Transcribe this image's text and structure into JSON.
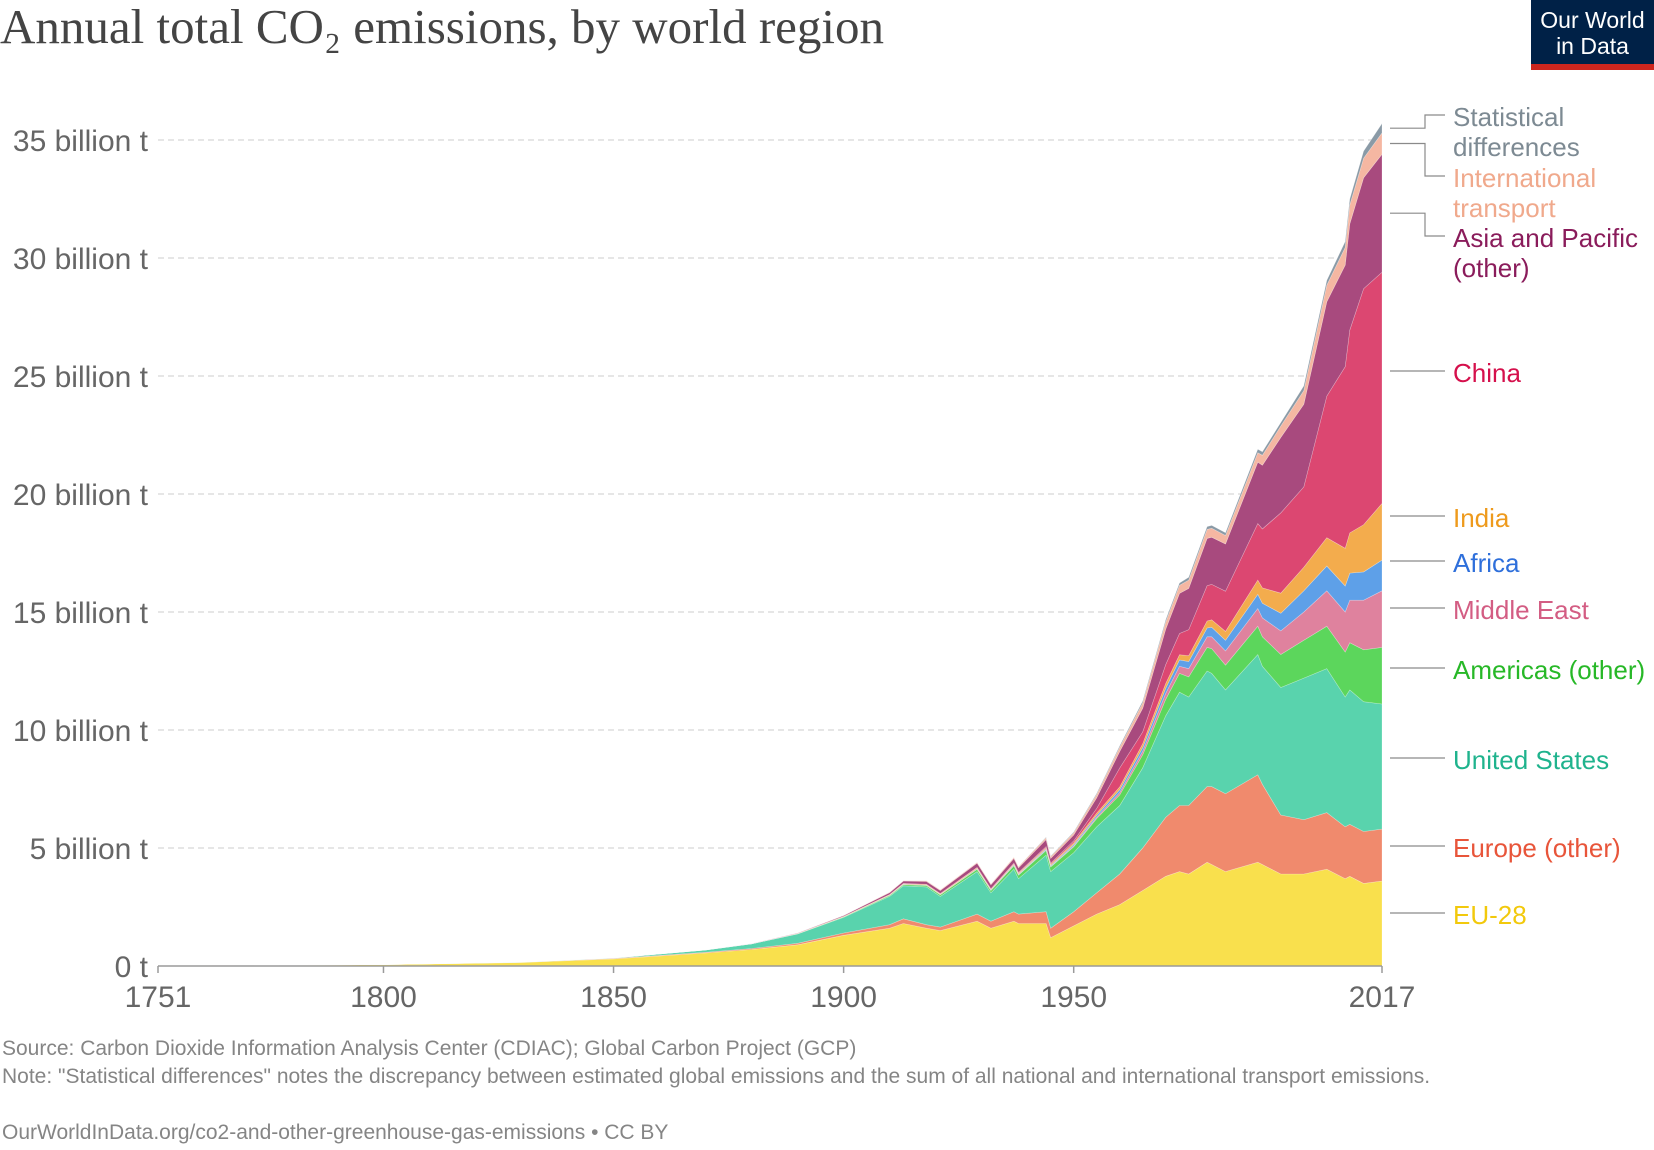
{
  "title": "Annual total CO₂ emissions, by world region",
  "logo": {
    "line1": "Our World",
    "line2": "in Data"
  },
  "footer": {
    "source": "Source: Carbon Dioxide Information Analysis Center (CDIAC); Global Carbon Project (GCP)",
    "note": "Note: \"Statistical differences\" notes the discrepancy between estimated global emissions and the sum of all national and international transport emissions.",
    "url": "OurWorldInData.org/co2-and-other-greenhouse-gas-emissions • CC BY"
  },
  "chart_data": {
    "type": "area",
    "stacked": true,
    "title": "Annual total CO₂ emissions, by world region",
    "unit": "t",
    "x": [
      1751,
      1800,
      1830,
      1850,
      1870,
      1880,
      1890,
      1900,
      1910,
      1913,
      1918,
      1921,
      1929,
      1932,
      1937,
      1938,
      1944,
      1945,
      1950,
      1955,
      1960,
      1965,
      1970,
      1973,
      1975,
      1979,
      1980,
      1983,
      1990,
      1991,
      1995,
      2000,
      2005,
      2009,
      2010,
      2013,
      2017
    ],
    "series": [
      {
        "name": "EU-28",
        "color": "#f9e04d",
        "values": [
          0.01,
          0.06,
          0.15,
          0.3,
          0.55,
          0.7,
          0.9,
          1.3,
          1.6,
          1.8,
          1.6,
          1.5,
          1.9,
          1.6,
          1.9,
          1.8,
          1.8,
          1.2,
          1.7,
          2.2,
          2.6,
          3.2,
          3.8,
          4.0,
          3.9,
          4.4,
          4.3,
          4.0,
          4.4,
          4.3,
          3.9,
          3.9,
          4.1,
          3.7,
          3.8,
          3.5,
          3.6
        ]
      },
      {
        "name": "Europe (other)",
        "color": "#f08a6d",
        "values": [
          0.0,
          0.0,
          0.0,
          0.02,
          0.03,
          0.04,
          0.06,
          0.1,
          0.15,
          0.2,
          0.15,
          0.15,
          0.3,
          0.3,
          0.4,
          0.4,
          0.5,
          0.4,
          0.6,
          0.9,
          1.3,
          1.8,
          2.5,
          2.8,
          2.9,
          3.2,
          3.3,
          3.3,
          3.7,
          3.4,
          2.5,
          2.3,
          2.4,
          2.2,
          2.2,
          2.2,
          2.2
        ]
      },
      {
        "name": "United States",
        "color": "#59d3ad",
        "values": [
          0.0,
          0.0,
          0.01,
          0.02,
          0.1,
          0.2,
          0.4,
          0.66,
          1.2,
          1.4,
          1.6,
          1.3,
          1.8,
          1.2,
          1.8,
          1.5,
          2.4,
          2.4,
          2.5,
          2.8,
          2.9,
          3.4,
          4.3,
          4.8,
          4.6,
          4.9,
          4.8,
          4.4,
          5.1,
          5.0,
          5.4,
          6.0,
          6.1,
          5.5,
          5.7,
          5.5,
          5.3
        ]
      },
      {
        "name": "Americas (other)",
        "color": "#5cd65c",
        "values": [
          0.0,
          0.0,
          0.0,
          0.0,
          0.0,
          0.0,
          0.01,
          0.02,
          0.04,
          0.05,
          0.06,
          0.07,
          0.1,
          0.1,
          0.15,
          0.15,
          0.2,
          0.2,
          0.25,
          0.35,
          0.45,
          0.55,
          0.7,
          0.8,
          0.85,
          1.0,
          1.05,
          1.05,
          1.2,
          1.25,
          1.4,
          1.6,
          1.8,
          1.9,
          2.0,
          2.2,
          2.4
        ]
      },
      {
        "name": "Middle East",
        "color": "#df829e",
        "values": [
          0.0,
          0.0,
          0.0,
          0.0,
          0.0,
          0.0,
          0.0,
          0.0,
          0.0,
          0.0,
          0.0,
          0.0,
          0.0,
          0.0,
          0.01,
          0.01,
          0.02,
          0.02,
          0.04,
          0.06,
          0.1,
          0.15,
          0.25,
          0.3,
          0.35,
          0.45,
          0.5,
          0.6,
          0.75,
          0.8,
          1.0,
          1.2,
          1.5,
          1.7,
          1.8,
          2.1,
          2.4
        ]
      },
      {
        "name": "Africa",
        "color": "#5ea0e8",
        "values": [
          0.0,
          0.0,
          0.0,
          0.0,
          0.0,
          0.0,
          0.0,
          0.0,
          0.01,
          0.01,
          0.01,
          0.01,
          0.02,
          0.02,
          0.03,
          0.03,
          0.04,
          0.04,
          0.06,
          0.08,
          0.12,
          0.16,
          0.22,
          0.27,
          0.3,
          0.37,
          0.4,
          0.45,
          0.6,
          0.62,
          0.75,
          0.9,
          1.05,
          1.1,
          1.15,
          1.2,
          1.3
        ]
      },
      {
        "name": "India",
        "color": "#f3ac4d",
        "values": [
          0.0,
          0.0,
          0.0,
          0.0,
          0.0,
          0.0,
          0.01,
          0.02,
          0.02,
          0.03,
          0.03,
          0.03,
          0.04,
          0.03,
          0.04,
          0.04,
          0.05,
          0.05,
          0.07,
          0.09,
          0.12,
          0.16,
          0.2,
          0.22,
          0.25,
          0.3,
          0.32,
          0.38,
          0.6,
          0.65,
          0.85,
          1.0,
          1.2,
          1.6,
          1.7,
          2.0,
          2.4
        ]
      },
      {
        "name": "China",
        "color": "#dc4771",
        "values": [
          0.0,
          0.0,
          0.0,
          0.0,
          0.0,
          0.0,
          0.0,
          0.0,
          0.01,
          0.01,
          0.01,
          0.01,
          0.02,
          0.02,
          0.03,
          0.03,
          0.05,
          0.05,
          0.08,
          0.2,
          0.8,
          0.5,
          0.8,
          0.9,
          1.1,
          1.5,
          1.5,
          1.7,
          2.4,
          2.5,
          3.4,
          3.4,
          6.0,
          7.7,
          8.6,
          10.0,
          9.8
        ]
      },
      {
        "name": "Asia and Pacific (other)",
        "color": "#a84a7e",
        "values": [
          0.0,
          0.0,
          0.0,
          0.0,
          0.0,
          0.01,
          0.02,
          0.04,
          0.08,
          0.1,
          0.12,
          0.13,
          0.18,
          0.17,
          0.2,
          0.2,
          0.3,
          0.2,
          0.25,
          0.45,
          0.7,
          1.0,
          1.5,
          1.7,
          1.75,
          2.0,
          2.0,
          2.0,
          2.6,
          2.7,
          3.2,
          3.5,
          4.0,
          4.3,
          4.5,
          4.7,
          5.0
        ]
      },
      {
        "name": "International transport",
        "color": "#f5b7a2",
        "values": [
          0.0,
          0.0,
          0.0,
          0.0,
          0.0,
          0.0,
          0.0,
          0.0,
          0.02,
          0.02,
          0.03,
          0.03,
          0.04,
          0.04,
          0.05,
          0.05,
          0.08,
          0.08,
          0.1,
          0.14,
          0.18,
          0.23,
          0.3,
          0.34,
          0.35,
          0.38,
          0.38,
          0.36,
          0.4,
          0.42,
          0.48,
          0.58,
          0.7,
          0.75,
          0.8,
          0.83,
          0.9
        ]
      },
      {
        "name": "Statistical differences",
        "color": "#8a9aa6",
        "values": [
          0.0,
          0.0,
          0.0,
          0.0,
          0.0,
          0.0,
          0.0,
          0.0,
          0.0,
          0.0,
          0.0,
          0.0,
          0.0,
          0.0,
          0.0,
          0.0,
          0.02,
          0.02,
          0.03,
          0.05,
          0.06,
          0.08,
          0.1,
          0.1,
          0.12,
          0.12,
          0.12,
          0.12,
          0.15,
          0.15,
          0.15,
          0.2,
          0.2,
          0.25,
          0.25,
          0.3,
          0.4
        ]
      }
    ],
    "labels": [
      {
        "text": [
          "Statistical",
          "differences"
        ],
        "color": "#7d8a93"
      },
      {
        "text": [
          "International",
          "transport"
        ],
        "color": "#f0a98c"
      },
      {
        "text": [
          "Asia and Pacific",
          "(other)"
        ],
        "color": "#8a1c5b"
      },
      {
        "text": [
          "China"
        ],
        "color": "#d5104c"
      },
      {
        "text": [
          "India"
        ],
        "color": "#ee9a1c"
      },
      {
        "text": [
          "Africa"
        ],
        "color": "#2e6fdb"
      },
      {
        "text": [
          "Middle East"
        ],
        "color": "#d35d83"
      },
      {
        "text": [
          "Americas (other)"
        ],
        "color": "#27b827"
      },
      {
        "text": [
          "United States"
        ],
        "color": "#1fb38d"
      },
      {
        "text": [
          "Europe (other)"
        ],
        "color": "#e8553a"
      },
      {
        "text": [
          "EU-28"
        ],
        "color": "#f2c90c"
      }
    ],
    "y_ticks": [
      {
        "value": 0,
        "label": "0 t"
      },
      {
        "value": 5,
        "label": "5 billion t"
      },
      {
        "value": 10,
        "label": "10 billion t"
      },
      {
        "value": 15,
        "label": "15 billion t"
      },
      {
        "value": 20,
        "label": "20 billion t"
      },
      {
        "value": 25,
        "label": "25 billion t"
      },
      {
        "value": 30,
        "label": "30 billion t"
      },
      {
        "value": 35,
        "label": "35 billion t"
      }
    ],
    "x_ticks": [
      1751,
      1800,
      1850,
      1900,
      1950,
      2017
    ],
    "xlim": [
      1751,
      2017
    ],
    "ylim": [
      0,
      36
    ],
    "grid": true
  }
}
